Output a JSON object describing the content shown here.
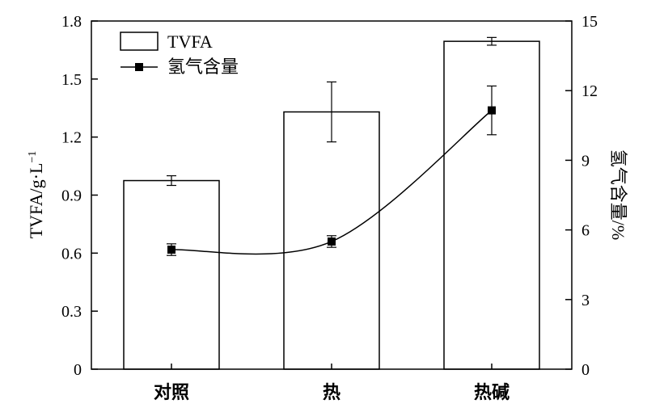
{
  "chart_data": {
    "type": "bar",
    "categories": [
      "对照",
      "热",
      "热碱"
    ],
    "y_left": {
      "label": "TVFA/g·L",
      "label_superscript": "−1",
      "range": [
        0,
        1.8
      ],
      "ticks": [
        "0",
        "0.3",
        "0.6",
        "0.9",
        "1.2",
        "1.5",
        "1.8"
      ]
    },
    "y_right": {
      "label": "氢气含量/%",
      "range": [
        0,
        15
      ],
      "ticks": [
        "0",
        "3",
        "6",
        "9",
        "12",
        "15"
      ]
    },
    "series": [
      {
        "name": "TVFA",
        "type": "bar",
        "axis": "left",
        "values": [
          0.975,
          1.33,
          1.695
        ],
        "errors": [
          0.025,
          0.155,
          0.02
        ]
      },
      {
        "name": "氢气含量",
        "type": "line",
        "axis": "right",
        "smooth": true,
        "marker": "square",
        "values": [
          5.15,
          5.5,
          11.15
        ],
        "errors": [
          0.25,
          0.25,
          1.05
        ]
      }
    ],
    "legend": {
      "position": "top-left"
    },
    "grid": false
  }
}
